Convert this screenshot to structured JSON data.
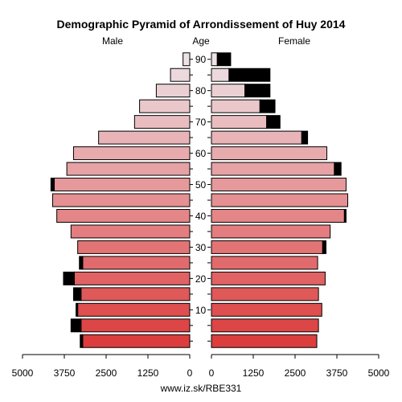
{
  "chart_data": {
    "type": "bar",
    "subtype": "population-pyramid",
    "title": "Demographic Pyramid of Arrondissement of Huy 2014",
    "left_label": "Male",
    "center_label": "Age",
    "right_label": "Female",
    "footer": "www.iz.sk/RBE331",
    "age_tick_labels": [
      "10",
      "20",
      "30",
      "40",
      "50",
      "60",
      "70",
      "80",
      "90"
    ],
    "x_tick_labels": [
      "5000",
      "3750",
      "2500",
      "1250",
      "0",
      "0",
      "1250",
      "2500",
      "3750",
      "5000"
    ],
    "xlim": [
      0,
      5000
    ],
    "age_groups": [
      "0-4",
      "5-9",
      "10-14",
      "15-19",
      "20-24",
      "25-29",
      "30-34",
      "35-39",
      "40-44",
      "45-49",
      "50-54",
      "55-59",
      "60-64",
      "65-69",
      "70-74",
      "75-79",
      "80-84",
      "85-89",
      "90+"
    ],
    "series": [
      {
        "name": "Male",
        "base_values": [
          3200,
          3250,
          3350,
          3250,
          3450,
          3200,
          3350,
          3550,
          3975,
          4100,
          4050,
          3675,
          3475,
          2725,
          1650,
          1500,
          1000,
          575,
          200
        ],
        "excess_values": [
          75,
          300,
          50,
          225,
          325,
          100,
          0,
          0,
          0,
          0,
          100,
          0,
          0,
          0,
          0,
          0,
          0,
          0,
          0
        ]
      },
      {
        "name": "Female",
        "base_values": [
          3150,
          3200,
          3300,
          3200,
          3400,
          3175,
          3325,
          3550,
          3975,
          4075,
          4025,
          3675,
          3450,
          2700,
          1650,
          1450,
          1000,
          525,
          175
        ],
        "excess_values": [
          0,
          0,
          0,
          0,
          0,
          0,
          100,
          0,
          50,
          0,
          0,
          200,
          0,
          175,
          400,
          450,
          750,
          1225,
          400
        ]
      }
    ],
    "colors": {
      "young": "#dc3d3d",
      "old": "#ede2e6",
      "excess": "#000000",
      "stroke": "#000000"
    }
  }
}
